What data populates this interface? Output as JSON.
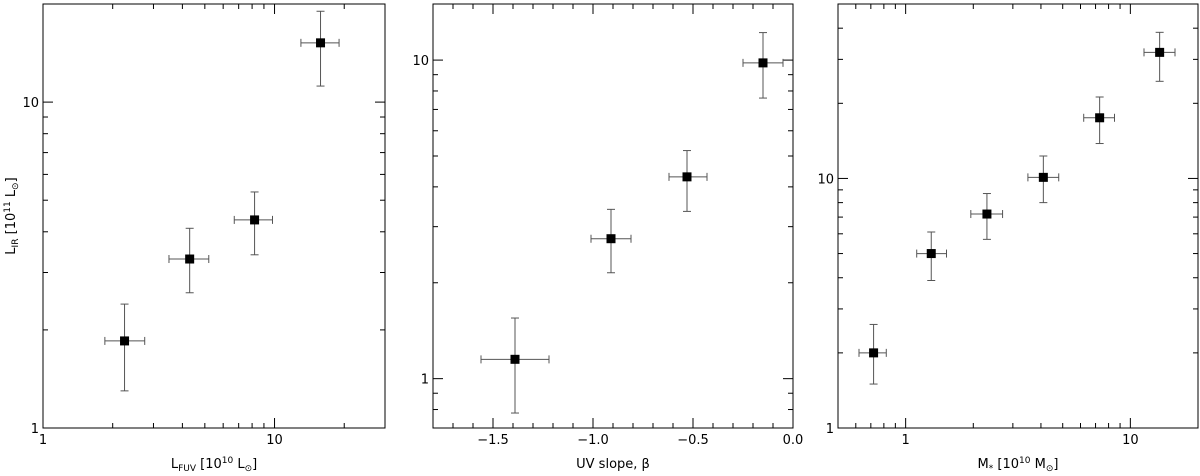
{
  "chart_data": [
    {
      "type": "scatter",
      "xscale": "log",
      "yscale": "log",
      "xlim": [
        1,
        30
      ],
      "ylim": [
        1,
        20
      ],
      "grid": false,
      "xticks": [
        {
          "value": 1,
          "label": "1"
        },
        {
          "value": 10,
          "label": "10"
        }
      ],
      "yticks": [
        {
          "value": 1,
          "label": "1"
        },
        {
          "value": 10,
          "label": "10"
        }
      ],
      "xlabel": {
        "main": "L",
        "sub": "FUV",
        "rest": " [10",
        "sup": "10",
        "unit": " L",
        "unitsub": "⊙",
        "close": "]"
      },
      "ylabel": {
        "main": "L",
        "sub": "IR",
        "rest": " [10",
        "sup": "11",
        "unit": " L",
        "unitsub": "⊙",
        "close": "]"
      },
      "points": [
        {
          "x": 2.25,
          "y": 1.85,
          "xlo": 1.85,
          "xhi": 2.75,
          "ylo": 1.3,
          "yhi": 2.4
        },
        {
          "x": 4.3,
          "y": 3.3,
          "xlo": 3.5,
          "xhi": 5.2,
          "ylo": 2.6,
          "yhi": 4.1
        },
        {
          "x": 8.2,
          "y": 4.35,
          "xlo": 6.7,
          "xhi": 9.8,
          "ylo": 3.4,
          "yhi": 5.3
        },
        {
          "x": 15.8,
          "y": 15.2,
          "xlo": 13.0,
          "xhi": 19.0,
          "ylo": 11.2,
          "yhi": 19.0
        }
      ]
    },
    {
      "type": "scatter",
      "xscale": "linear",
      "yscale": "log",
      "xlim": [
        -1.8,
        0.0
      ],
      "ylim": [
        0.7,
        15
      ],
      "grid": false,
      "xticks": [
        {
          "value": -1.5,
          "label": "−1.5"
        },
        {
          "value": -1.0,
          "label": "−1.0"
        },
        {
          "value": -0.5,
          "label": "−0.5"
        },
        {
          "value": 0.0,
          "label": "0.0"
        }
      ],
      "yticks": [
        {
          "value": 1,
          "label": "1"
        },
        {
          "value": 10,
          "label": "10"
        }
      ],
      "xlabel": {
        "main": "UV slope, β"
      },
      "points": [
        {
          "x": -1.39,
          "y": 1.15,
          "xlo": -1.56,
          "xhi": -1.22,
          "ylo": 0.78,
          "yhi": 1.55
        },
        {
          "x": -0.91,
          "y": 2.75,
          "xlo": -1.01,
          "xhi": -0.81,
          "ylo": 2.15,
          "yhi": 3.4
        },
        {
          "x": -0.53,
          "y": 4.3,
          "xlo": -0.62,
          "xhi": -0.43,
          "ylo": 3.35,
          "yhi": 5.2
        },
        {
          "x": -0.15,
          "y": 9.8,
          "xlo": -0.25,
          "xhi": -0.05,
          "ylo": 7.6,
          "yhi": 12.2
        }
      ]
    },
    {
      "type": "scatter",
      "xscale": "log",
      "yscale": "log",
      "xlim": [
        0.5,
        20
      ],
      "ylim": [
        1,
        50
      ],
      "grid": false,
      "xticks": [
        {
          "value": 1,
          "label": "1"
        },
        {
          "value": 10,
          "label": "10"
        }
      ],
      "yticks": [
        {
          "value": 1,
          "label": "1"
        },
        {
          "value": 10,
          "label": "10"
        }
      ],
      "xlabel": {
        "main": "M",
        "sub": "*",
        "rest": " [10",
        "sup": "10",
        "unit": " M",
        "unitsub": "⊙",
        "close": "]"
      },
      "points": [
        {
          "x": 0.72,
          "y": 2.0,
          "xlo": 0.62,
          "xhi": 0.82,
          "ylo": 1.5,
          "yhi": 2.6
        },
        {
          "x": 1.3,
          "y": 5.0,
          "xlo": 1.12,
          "xhi": 1.52,
          "ylo": 3.9,
          "yhi": 6.1
        },
        {
          "x": 2.3,
          "y": 7.2,
          "xlo": 1.95,
          "xhi": 2.7,
          "ylo": 5.7,
          "yhi": 8.7
        },
        {
          "x": 4.1,
          "y": 10.1,
          "xlo": 3.5,
          "xhi": 4.8,
          "ylo": 8.0,
          "yhi": 12.3
        },
        {
          "x": 7.3,
          "y": 17.5,
          "xlo": 6.2,
          "xhi": 8.5,
          "ylo": 13.8,
          "yhi": 21.2
        },
        {
          "x": 13.5,
          "y": 32.0,
          "xlo": 11.5,
          "xhi": 15.8,
          "ylo": 24.5,
          "yhi": 38.5
        }
      ]
    }
  ]
}
